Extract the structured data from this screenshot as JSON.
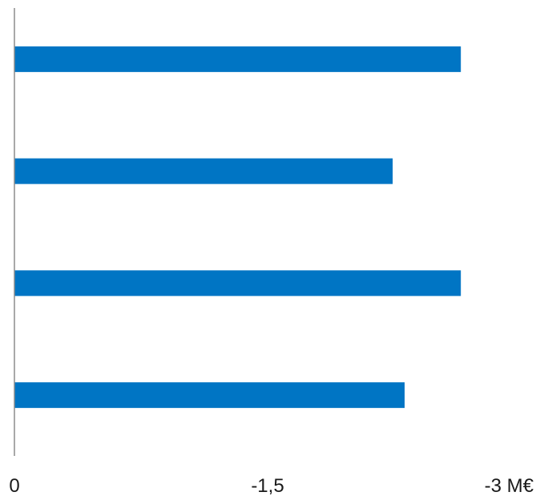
{
  "chart_data": {
    "type": "bar",
    "orientation": "horizontal",
    "reversed_value_axis": true,
    "title": "",
    "xlabel": "",
    "ylabel": "",
    "unit": "M€",
    "categories": [
      "",
      "",
      "",
      ""
    ],
    "values": [
      -2.62,
      -2.22,
      -2.62,
      -2.29
    ],
    "xlim": [
      0,
      -3
    ],
    "ticks": [
      0,
      -1.5,
      -3
    ],
    "tick_labels": [
      "0",
      "-1,5",
      "-3 M€"
    ],
    "grid": false,
    "legend": "none",
    "colors": {
      "bar": "#0075c4",
      "axis": "#8c8c8c",
      "text": "#1a1a1a"
    }
  }
}
